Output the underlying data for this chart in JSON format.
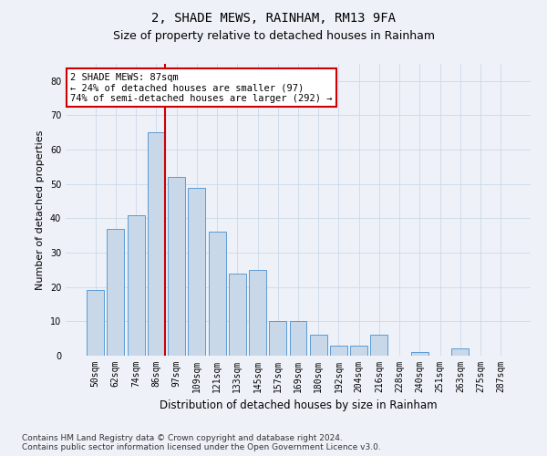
{
  "title1": "2, SHADE MEWS, RAINHAM, RM13 9FA",
  "title2": "Size of property relative to detached houses in Rainham",
  "xlabel": "Distribution of detached houses by size in Rainham",
  "ylabel": "Number of detached properties",
  "categories": [
    "50sqm",
    "62sqm",
    "74sqm",
    "86sqm",
    "97sqm",
    "109sqm",
    "121sqm",
    "133sqm",
    "145sqm",
    "157sqm",
    "169sqm",
    "180sqm",
    "192sqm",
    "204sqm",
    "216sqm",
    "228sqm",
    "240sqm",
    "251sqm",
    "263sqm",
    "275sqm",
    "287sqm"
  ],
  "values": [
    19,
    37,
    41,
    65,
    52,
    49,
    36,
    24,
    25,
    10,
    10,
    6,
    3,
    3,
    6,
    0,
    1,
    0,
    2,
    0,
    0
  ],
  "bar_color": "#c8d8e8",
  "bar_edge_color": "#5b9bd5",
  "annotation_text": "2 SHADE MEWS: 87sqm\n← 24% of detached houses are smaller (97)\n74% of semi-detached houses are larger (292) →",
  "annotation_box_color": "#ffffff",
  "annotation_box_edge": "#cc0000",
  "vline_color": "#cc0000",
  "ylim": [
    0,
    85
  ],
  "yticks": [
    0,
    10,
    20,
    30,
    40,
    50,
    60,
    70,
    80
  ],
  "grid_color": "#ccd8e8",
  "background_color": "#eef2f8",
  "footer_line1": "Contains HM Land Registry data © Crown copyright and database right 2024.",
  "footer_line2": "Contains public sector information licensed under the Open Government Licence v3.0.",
  "title1_fontsize": 10,
  "title2_fontsize": 9,
  "xlabel_fontsize": 8.5,
  "ylabel_fontsize": 8,
  "tick_fontsize": 7,
  "footer_fontsize": 6.5,
  "annot_fontsize": 7.5
}
